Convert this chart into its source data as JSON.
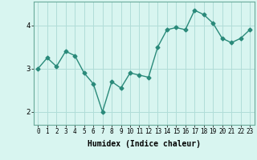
{
  "x": [
    0,
    1,
    2,
    3,
    4,
    5,
    6,
    7,
    8,
    9,
    10,
    11,
    12,
    13,
    14,
    15,
    16,
    17,
    18,
    19,
    20,
    21,
    22,
    23
  ],
  "y": [
    3.0,
    3.25,
    3.05,
    3.4,
    3.3,
    2.9,
    2.65,
    2.0,
    2.7,
    2.55,
    2.9,
    2.85,
    2.8,
    3.5,
    3.9,
    3.95,
    3.9,
    4.35,
    4.25,
    4.05,
    3.7,
    3.6,
    3.7,
    3.9
  ],
  "line_color": "#2a8a7a",
  "marker": "D",
  "markersize": 2.5,
  "linewidth": 1.0,
  "background_color": "#d8f5f0",
  "grid_color": "#b0ddd8",
  "xlabel": "Humidex (Indice chaleur)",
  "xlabel_fontsize": 7,
  "ylabel": "",
  "ytick_labels": [
    "2",
    "3",
    "4"
  ],
  "ytick_values": [
    2,
    3,
    4
  ],
  "xtick_labels": [
    "0",
    "1",
    "2",
    "3",
    "4",
    "5",
    "6",
    "7",
    "8",
    "9",
    "10",
    "11",
    "12",
    "13",
    "14",
    "15",
    "16",
    "17",
    "18",
    "19",
    "20",
    "21",
    "22",
    "23"
  ],
  "xlim": [
    -0.5,
    23.5
  ],
  "ylim": [
    1.7,
    4.55
  ],
  "tick_fontsize": 5.5,
  "title": ""
}
